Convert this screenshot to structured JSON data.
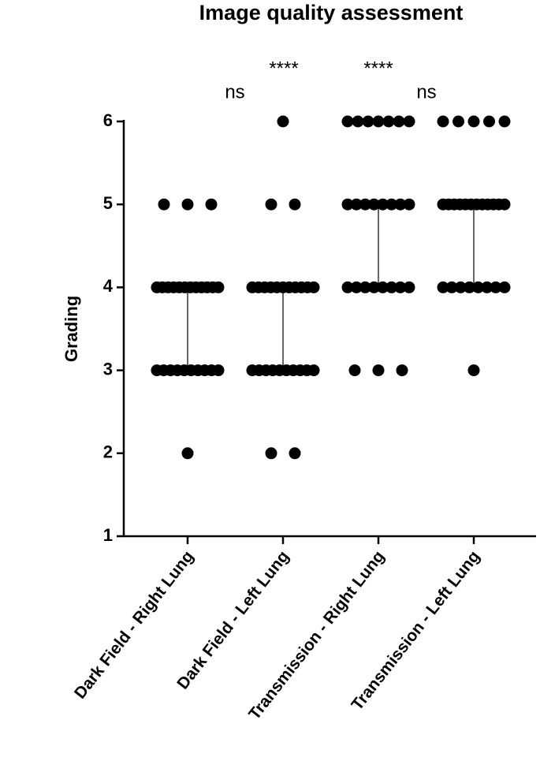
{
  "chart_data": {
    "type": "strip",
    "title": "Image quality assessment",
    "y_label": "Grading",
    "categories": [
      "Dark Field - Right Lung",
      "Dark Field - Left Lung",
      "Transmission - Right Lung",
      "Transmission - Left Lung"
    ],
    "series": [
      {
        "values": [
          2,
          3,
          3,
          3,
          3,
          3,
          3,
          3,
          3,
          3,
          3,
          4,
          4,
          4,
          4,
          4,
          4,
          4,
          4,
          4,
          4,
          4,
          4,
          5,
          5,
          5
        ],
        "range": [
          3,
          4
        ]
      },
      {
        "values": [
          2,
          2,
          3,
          3,
          3,
          3,
          3,
          3,
          3,
          3,
          3,
          3,
          4,
          4,
          4,
          4,
          4,
          4,
          4,
          4,
          4,
          4,
          4,
          5,
          5,
          6
        ],
        "range": [
          3,
          4
        ]
      },
      {
        "values": [
          3,
          3,
          3,
          4,
          4,
          4,
          4,
          4,
          4,
          4,
          4,
          5,
          5,
          5,
          5,
          5,
          5,
          5,
          5,
          6,
          6,
          6,
          6,
          6,
          6,
          6
        ],
        "range": [
          4,
          5
        ]
      },
      {
        "values": [
          3,
          4,
          4,
          4,
          4,
          4,
          4,
          4,
          4,
          5,
          5,
          5,
          5,
          5,
          5,
          5,
          5,
          5,
          5,
          5,
          5,
          6,
          6,
          6,
          6,
          6
        ],
        "range": [
          4,
          5
        ]
      }
    ],
    "color": "#000000",
    "annotations": [
      "ns",
      "****",
      "****",
      "ns"
    ],
    "ylim": [
      1,
      6
    ],
    "yticks": [
      1,
      2,
      3,
      4,
      5,
      6
    ],
    "grid": false
  }
}
